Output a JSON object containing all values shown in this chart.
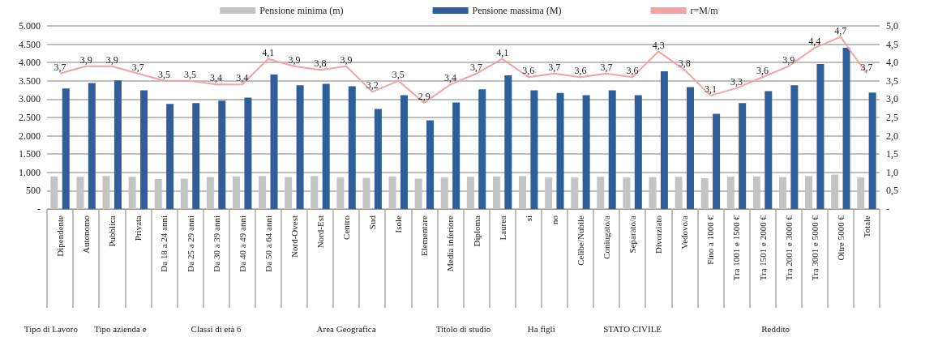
{
  "chart_data": {
    "type": "bar",
    "categories": [
      "Dipendente",
      "Autonomo",
      "Pubblica",
      "Privata",
      "Da 18 a 24 anni",
      "Da 25 a 29 anni",
      "Da 30 a 39 anni",
      "Da 40 a 49 anni",
      "Da 50 a 64 anni",
      "Nord-Ovest",
      "Nord-Est",
      "Centro",
      "Sud",
      "Isole",
      "Elementare",
      "Media inferiore",
      "Diploma",
      "Laurea",
      "si",
      "no",
      "Celibe/Nubile",
      "Coniugato/a",
      "Separato/a",
      "Divorziato",
      "Vedovo/a",
      "Fino a 1000 €",
      "Tra 1001 e 1500 €",
      "Tra 1501 e 2000 €",
      "Tra 2001 e 3000 €",
      "Tra 3001 e 5000 €",
      "Oltre 5000 €",
      "Totale"
    ],
    "series": [
      {
        "name": "Pensione minima (m)",
        "color": "#c4c4c4",
        "values": [
          890,
          880,
          900,
          880,
          820,
          830,
          870,
          890,
          900,
          870,
          900,
          860,
          850,
          890,
          830,
          860,
          880,
          890,
          900,
          860,
          860,
          880,
          860,
          870,
          880,
          840,
          880,
          890,
          870,
          900,
          940,
          860
        ]
      },
      {
        "name": "Pensione massima (M)",
        "color": "#2e5f9a",
        "values": [
          3290,
          3440,
          3510,
          3240,
          2870,
          2890,
          2960,
          3040,
          3670,
          3380,
          3420,
          3350,
          2730,
          3110,
          2420,
          2910,
          3270,
          3650,
          3240,
          3170,
          3110,
          3240,
          3110,
          3760,
          3330,
          2600,
          2890,
          3220,
          3380,
          3960,
          4400,
          3180
        ]
      },
      {
        "name": "r=M/m",
        "type": "line",
        "axis": "y2",
        "color": "#f2a3a3",
        "values": [
          3.7,
          3.9,
          3.9,
          3.7,
          3.5,
          3.5,
          3.4,
          3.4,
          4.1,
          3.9,
          3.8,
          3.9,
          3.2,
          3.5,
          2.9,
          3.4,
          3.7,
          4.1,
          3.6,
          3.7,
          3.6,
          3.7,
          3.6,
          4.3,
          3.8,
          3.1,
          3.3,
          3.6,
          3.9,
          4.4,
          4.7,
          3.7
        ],
        "value_labels": [
          "3,7",
          "3,9",
          "3,9",
          "3,7",
          "3,5",
          "3,5",
          "3,4",
          "3,4",
          "4,1",
          "3,9",
          "3,8",
          "3,9",
          "3,2",
          "3,5",
          "2,9",
          "3,4",
          "3,7",
          "4,1",
          "3,6",
          "3,7",
          "3,6",
          "3,7",
          "3,6",
          "4,3",
          "3,8",
          "3,1",
          "3,3",
          "3,6",
          "3,9",
          "4,4",
          "4,7",
          "3,7"
        ]
      }
    ],
    "ylim": [
      0,
      5000
    ],
    "yticks": [
      {
        "value": 0,
        "label": "-"
      },
      {
        "value": 500,
        "label": "500"
      },
      {
        "value": 1000,
        "label": "1.000"
      },
      {
        "value": 1500,
        "label": "1.500"
      },
      {
        "value": 2000,
        "label": "2.000"
      },
      {
        "value": 2500,
        "label": "2.500"
      },
      {
        "value": 3000,
        "label": "3.000"
      },
      {
        "value": 3500,
        "label": "3.500"
      },
      {
        "value": 4000,
        "label": "4.000"
      },
      {
        "value": 4500,
        "label": "4.500"
      },
      {
        "value": 5000,
        "label": "5.000"
      }
    ],
    "y2lim": [
      0,
      5
    ],
    "y2ticks": [
      {
        "value": 0,
        "label": "-"
      },
      {
        "value": 0.5,
        "label": "0,5"
      },
      {
        "value": 1,
        "label": "1,0"
      },
      {
        "value": 1.5,
        "label": "1,5"
      },
      {
        "value": 2,
        "label": "2,0"
      },
      {
        "value": 2.5,
        "label": "2,5"
      },
      {
        "value": 3,
        "label": "3,0"
      },
      {
        "value": 3.5,
        "label": "3,5"
      },
      {
        "value": 4,
        "label": "4,0"
      },
      {
        "value": 4.5,
        "label": "4,5"
      },
      {
        "value": 5,
        "label": "5,0"
      }
    ],
    "annotations": [
      "Tipo di Lavoro",
      "Tipo azienda e",
      "Classi di età 6",
      "Area Geografica",
      "Titolo di studio",
      "Ha figli",
      "STATO CIVILE",
      "Reddito"
    ],
    "grid": "y",
    "legend": "top",
    "marker": "none",
    "line_style": "solid"
  }
}
